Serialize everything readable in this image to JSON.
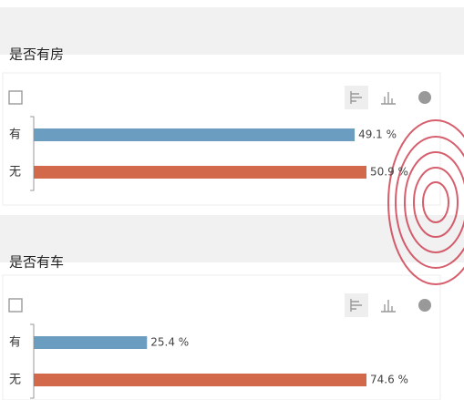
{
  "chart_data": [
    {
      "type": "bar",
      "orientation": "horizontal",
      "title": "是否有房",
      "categories": [
        "有",
        "无"
      ],
      "values": [
        49.1,
        50.9
      ],
      "value_labels": [
        "49.1 %",
        "50.9 %"
      ],
      "colors": [
        "#6b9dc1",
        "#d3694b"
      ]
    },
    {
      "type": "bar",
      "orientation": "horizontal",
      "title": "是否有车",
      "categories": [
        "有",
        "无"
      ],
      "values": [
        25.4,
        74.6
      ],
      "value_labels": [
        "25.4 %",
        "74.6 %"
      ],
      "colors": [
        "#6b9dc1",
        "#d3694b"
      ]
    }
  ]
}
